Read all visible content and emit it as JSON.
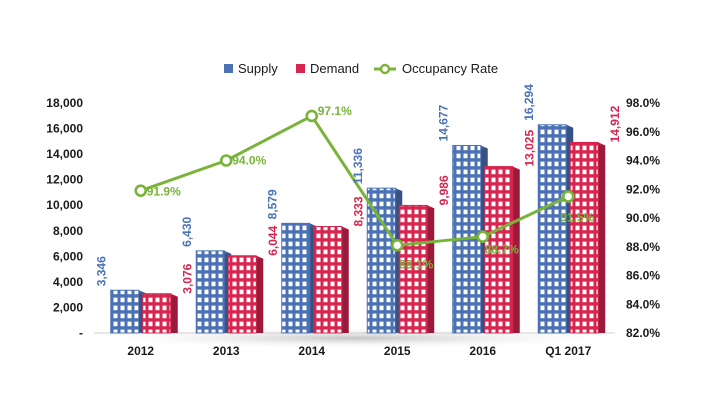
{
  "chart_data": {
    "type": "bar",
    "categories": [
      "2012",
      "2013",
      "2014",
      "2015",
      "2016",
      "Q1 2017"
    ],
    "series": [
      {
        "name": "Supply",
        "kind": "bar",
        "axis": "left",
        "color": "#4b72b5",
        "values": [
          3346,
          6430,
          8579,
          11336,
          14677,
          16294
        ],
        "labels": [
          "3,346",
          "6,430",
          "8,579",
          "11,336",
          "14,677",
          "16,294"
        ]
      },
      {
        "name": "Demand",
        "kind": "bar",
        "axis": "left",
        "color": "#d6254f",
        "values": [
          3076,
          6044,
          8333,
          9986,
          13025,
          14912
        ],
        "labels": [
          "3,076",
          "6,044",
          "8,333",
          "9,986",
          "13,025",
          "14,912"
        ]
      },
      {
        "name": "Occupancy Rate",
        "kind": "line",
        "axis": "right",
        "color": "#7ab33a",
        "values": [
          91.9,
          94.0,
          97.1,
          88.1,
          88.7,
          91.5
        ],
        "labels": [
          "91.9%",
          "94.0%",
          "97.1%",
          "88.1%",
          "88.7%",
          "91.5%"
        ]
      }
    ],
    "y_left": {
      "lim": [
        0,
        18000
      ],
      "ticks": [
        0,
        2000,
        4000,
        6000,
        8000,
        10000,
        12000,
        14000,
        16000,
        18000
      ],
      "tick_labels": [
        "-",
        "2,000",
        "4,000",
        "6,000",
        "8,000",
        "10,000",
        "12,000",
        "14,000",
        "16,000",
        "18,000"
      ]
    },
    "y_right": {
      "lim": [
        82,
        98
      ],
      "ticks": [
        82,
        84,
        86,
        88,
        90,
        92,
        94,
        96,
        98
      ],
      "tick_labels": [
        "82.0%",
        "84.0%",
        "86.0%",
        "88.0%",
        "90.0%",
        "92.0%",
        "94.0%",
        "96.0%",
        "98.0%"
      ]
    },
    "legend_position": "top-center",
    "grid": false,
    "title": "",
    "xlabel": "",
    "ylabel": ""
  }
}
